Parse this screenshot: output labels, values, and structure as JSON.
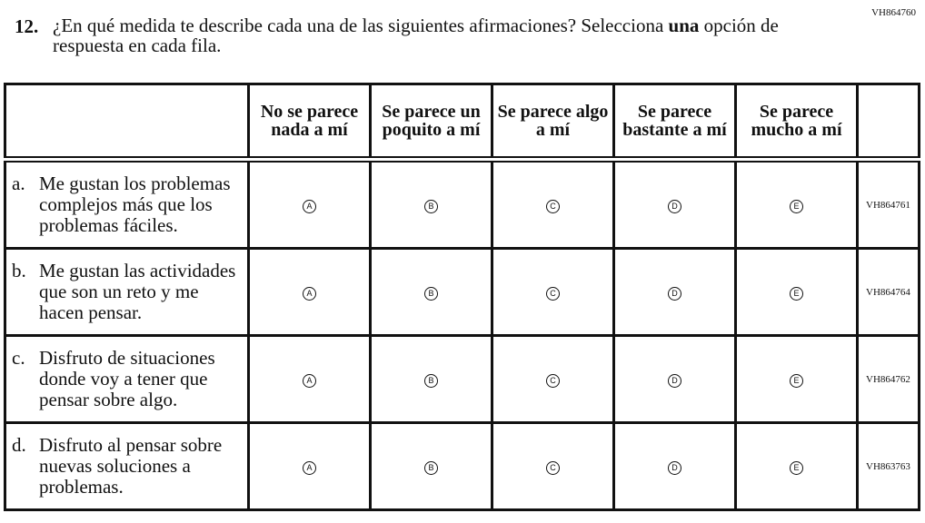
{
  "form_code": "VH864760",
  "question": {
    "number": "12.",
    "text": "¿En qué medida te describe cada una de las siguientes afirmaciones? Selecciona ",
    "emphasis": "una",
    "text_end": " opción de respuesta en cada fila."
  },
  "columns": [
    "No se parece nada a mí",
    "Se parece un poquito a mí",
    "Se parece algo a mí",
    "Se parece bastante a mí",
    "Se parece mucho a mí"
  ],
  "options": [
    "A",
    "B",
    "C",
    "D",
    "E"
  ],
  "rows": [
    {
      "letter": "a.",
      "text": "Me gustan los problemas complejos más que los problemas fáciles.",
      "code": "VH864761"
    },
    {
      "letter": "b.",
      "text": "Me gustan las actividades que son un reto y me hacen pensar.",
      "code": "VH864764"
    },
    {
      "letter": "c.",
      "text": "Disfruto de situaciones donde voy a tener que pensar sobre algo.",
      "code": "VH864762"
    },
    {
      "letter": "d.",
      "text": "Disfruto al pensar sobre nuevas soluciones a problemas.",
      "code": "VH863763"
    }
  ]
}
